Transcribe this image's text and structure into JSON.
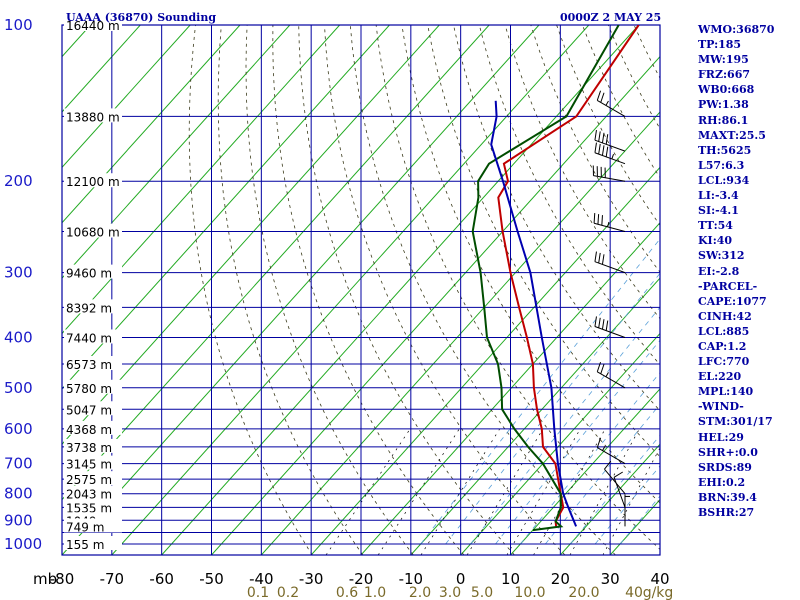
{
  "header": {
    "station": "UAAA (36870) Sounding",
    "time": "0000Z  2 MAY 25"
  },
  "indices": [
    "WMO:36870",
    "TP:185",
    "MW:195",
    "FRZ:667",
    "WB0:668",
    "PW:1.38",
    "RH:86.1",
    "MAXT:25.5",
    "TH:5625",
    "L57:6.3",
    "LCL:934",
    "LI:-3.4",
    "SI:-4.1",
    "TT:54",
    "KI:40",
    "SW:312",
    "EI:-2.8",
    "-PARCEL-",
    "CAPE:1077",
    "CINH:42",
    "LCL:885",
    "CAP:1.2",
    "LFC:770",
    "EL:220",
    "MPL:140",
    "-WIND-",
    "STM:301/17",
    "HEL:29",
    "SHR+:0.0",
    "SRDS:89",
    "EHI:0.2",
    "BRN:39.4",
    "BSHR:27"
  ],
  "chart_data": {
    "type": "line",
    "pressure_unit": "mb",
    "pressure_ticks": [
      100,
      200,
      300,
      400,
      500,
      600,
      700,
      800,
      900,
      1000
    ],
    "pressure_range": [
      100,
      1050
    ],
    "pressure_scale": "log",
    "temperature_range": [
      -80,
      40
    ],
    "temperature_ticks": [
      "-80",
      "-70",
      "-60",
      "-50",
      "-40",
      "-30",
      "-20",
      "-10",
      "0",
      "10",
      "20",
      "30",
      "40"
    ],
    "mixing_ratio_ticks": [
      "0.1",
      "0.2",
      "0.6",
      "1.0",
      "2.0",
      "3.0",
      "5.0",
      "10.0",
      "20.0",
      "40",
      "g/kg"
    ],
    "height_labels": [
      {
        "p": 100,
        "text": "16440 m"
      },
      {
        "p": 150,
        "text": "13880 m"
      },
      {
        "p": 200,
        "text": "12100 m"
      },
      {
        "p": 250,
        "text": "10680 m"
      },
      {
        "p": 300,
        "text": "9460 m"
      },
      {
        "p": 350,
        "text": "8392 m"
      },
      {
        "p": 400,
        "text": "7440 m"
      },
      {
        "p": 450,
        "text": "6573 m"
      },
      {
        "p": 500,
        "text": "5780 m"
      },
      {
        "p": 550,
        "text": "5047 m"
      },
      {
        "p": 600,
        "text": "4368 m"
      },
      {
        "p": 650,
        "text": "3738 m"
      },
      {
        "p": 700,
        "text": "3145 m"
      },
      {
        "p": 750,
        "text": "2575 m"
      },
      {
        "p": 800,
        "text": "2043 m"
      },
      {
        "p": 850,
        "text": "1535 m"
      },
      {
        "p": 900,
        "text": "1049 m"
      },
      {
        "p": 925,
        "text": "749 m"
      },
      {
        "p": 1000,
        "text": "155 m"
      }
    ],
    "series": [
      {
        "color": "#c00000",
        "points": [
          [
            925,
            14
          ],
          [
            905,
            13
          ],
          [
            850,
            12
          ],
          [
            800,
            9
          ],
          [
            700,
            2.5
          ],
          [
            650,
            -3
          ],
          [
            600,
            -6.5
          ],
          [
            550,
            -11
          ],
          [
            500,
            -15.5
          ],
          [
            450,
            -20
          ],
          [
            400,
            -26
          ],
          [
            350,
            -33
          ],
          [
            300,
            -41
          ],
          [
            250,
            -50
          ],
          [
            215,
            -57
          ],
          [
            200,
            -58
          ],
          [
            185,
            -62
          ],
          [
            150,
            -56
          ],
          [
            100,
            -60
          ]
        ]
      },
      {
        "color": "#004d00",
        "points": [
          [
            940,
            10
          ],
          [
            925,
            15
          ],
          [
            905,
            13
          ],
          [
            850,
            11.5
          ],
          [
            800,
            9
          ],
          [
            700,
            0
          ],
          [
            650,
            -6
          ],
          [
            600,
            -12
          ],
          [
            550,
            -18
          ],
          [
            500,
            -22
          ],
          [
            450,
            -27
          ],
          [
            400,
            -34
          ],
          [
            350,
            -40
          ],
          [
            300,
            -47
          ],
          [
            250,
            -56
          ],
          [
            215,
            -61
          ],
          [
            200,
            -64
          ],
          [
            185,
            -65
          ],
          [
            150,
            -58
          ],
          [
            100,
            -64
          ]
        ]
      },
      {
        "color": "#0000b0",
        "points": [
          [
            925,
            18
          ],
          [
            850,
            13
          ],
          [
            800,
            9.5
          ],
          [
            700,
            3
          ],
          [
            600,
            -4
          ],
          [
            500,
            -12
          ],
          [
            400,
            -23
          ],
          [
            300,
            -37
          ],
          [
            250,
            -47
          ],
          [
            200,
            -59
          ],
          [
            170,
            -68
          ],
          [
            150,
            -72
          ],
          [
            140,
            -75
          ]
        ]
      }
    ],
    "wind_barbs": [
      {
        "p": 150,
        "dir": 300,
        "spd": 25
      },
      {
        "p": 175,
        "dir": 290,
        "spd": 40
      },
      {
        "p": 185,
        "dir": 290,
        "spd": 45
      },
      {
        "p": 200,
        "dir": 280,
        "spd": 40
      },
      {
        "p": 250,
        "dir": 285,
        "spd": 35
      },
      {
        "p": 300,
        "dir": 290,
        "spd": 30
      },
      {
        "p": 400,
        "dir": 290,
        "spd": 40
      },
      {
        "p": 500,
        "dir": 300,
        "spd": 25
      },
      {
        "p": 700,
        "dir": 300,
        "spd": 15
      },
      {
        "p": 800,
        "dir": 320,
        "spd": 10
      },
      {
        "p": 850,
        "dir": 340,
        "spd": 10
      },
      {
        "p": 925,
        "dir": 0,
        "spd": 5
      }
    ]
  }
}
